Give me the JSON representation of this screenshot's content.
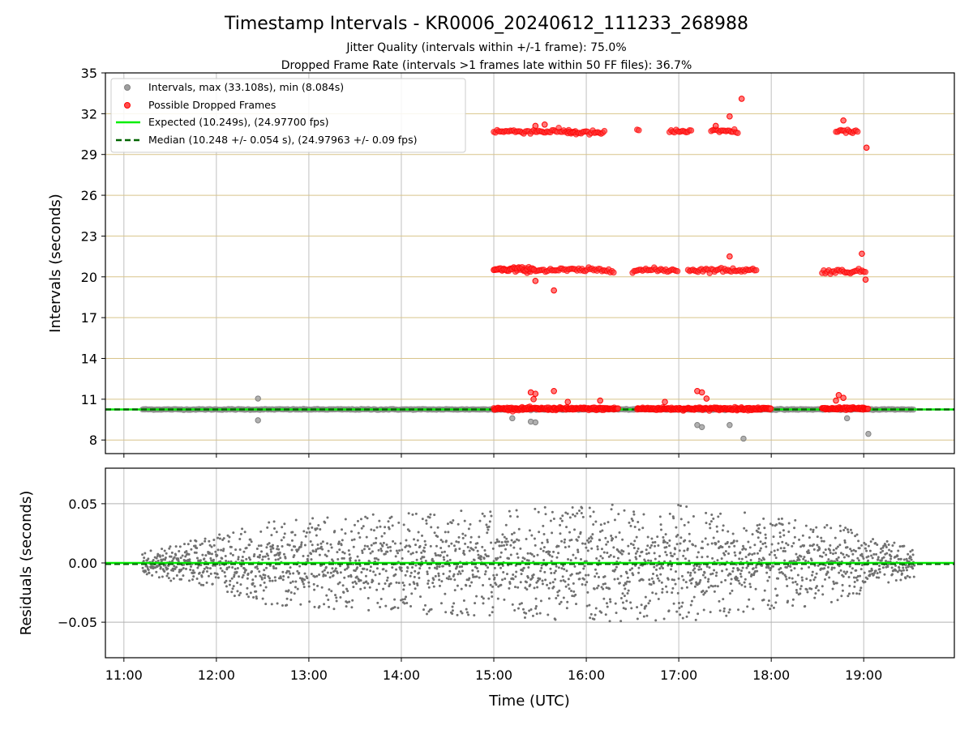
{
  "chart_data": {
    "title": "Timestamp Intervals - KR0006_20240612_111233_268988",
    "subtitle_lines": [
      "Jitter Quality (intervals within +/-1 frame): 75.0%",
      "Dropped Frame Rate (intervals >1 frames late within 50 FF files): 36.7%"
    ],
    "xlabel": "Time (UTC)",
    "x_ticks": [
      "11:00",
      "12:00",
      "13:00",
      "14:00",
      "15:00",
      "16:00",
      "17:00",
      "18:00",
      "19:00"
    ],
    "xlim_hours": [
      10.8,
      19.98
    ],
    "top_panel": {
      "type": "scatter",
      "ylabel": "Intervals (seconds)",
      "ylim": [
        7,
        35
      ],
      "y_ticks": [
        8,
        11,
        14,
        17,
        20,
        23,
        26,
        29,
        32,
        35
      ],
      "legend_position": "top-left",
      "grid": true,
      "legend": [
        {
          "label": "Intervals, max (33.108s), min (8.084s)",
          "kind": "marker",
          "color": "#9e9e9e"
        },
        {
          "label": "Possible Dropped Frames",
          "kind": "marker",
          "color": "#ff4d4d"
        },
        {
          "label": "Expected (10.249s), (24.97700 fps)",
          "kind": "line",
          "color": "#00ee00"
        },
        {
          "label": "Median (10.248 +/- 0.054 s), (24.97963 +/- 0.09 fps)",
          "kind": "dashed",
          "color": "#006400"
        }
      ],
      "expected_value": 10.249,
      "median_value": 10.248,
      "series": [
        {
          "name": "Intervals",
          "color": "#808080",
          "data_range": {
            "x": [
              11.2,
              19.55
            ],
            "y_center": 10.25
          },
          "outliers": [
            [
              12.45,
              11.05
            ],
            [
              12.45,
              9.45
            ],
            [
              15.2,
              9.6
            ],
            [
              15.4,
              9.35
            ],
            [
              15.45,
              9.3
            ],
            [
              17.2,
              9.1
            ],
            [
              17.25,
              8.95
            ],
            [
              17.55,
              9.1
            ],
            [
              17.7,
              8.1
            ],
            [
              18.82,
              9.6
            ],
            [
              19.05,
              8.45
            ]
          ]
        },
        {
          "name": "Possible Dropped Frames",
          "color": "#ff0000",
          "clusters": [
            {
              "x": [
                15.0,
                15.9
              ],
              "y": 30.7
            },
            {
              "x": [
                15.8,
                16.2
              ],
              "y": 30.6
            },
            {
              "x": [
                16.55,
                16.58
              ],
              "y": 30.7
            },
            {
              "x": [
                16.9,
                17.15
              ],
              "y": 30.7
            },
            {
              "x": [
                17.35,
                17.65
              ],
              "y": 30.7
            },
            {
              "x": [
                18.7,
                18.95
              ],
              "y": 30.7
            },
            {
              "x": [
                15.0,
                16.3
              ],
              "y": 20.5
            },
            {
              "x": [
                16.5,
                17.0
              ],
              "y": 20.5
            },
            {
              "x": [
                17.1,
                17.85
              ],
              "y": 20.5
            },
            {
              "x": [
                18.55,
                19.02
              ],
              "y": 20.4
            },
            {
              "x": [
                15.0,
                15.45
              ],
              "y": 20.6
            },
            {
              "x": [
                15.0,
                16.35
              ],
              "y": 10.3
            },
            {
              "x": [
                16.55,
                18.0
              ],
              "y": 10.3
            },
            {
              "x": [
                18.55,
                19.05
              ],
              "y": 10.3
            }
          ],
          "highlights": [
            [
              15.45,
              31.1
            ],
            [
              15.55,
              31.2
            ],
            [
              17.4,
              31.1
            ],
            [
              17.55,
              31.8
            ],
            [
              17.68,
              33.1
            ],
            [
              18.78,
              31.5
            ],
            [
              19.03,
              29.5
            ],
            [
              15.65,
              19.0
            ],
            [
              15.45,
              19.7
            ],
            [
              17.55,
              21.5
            ],
            [
              18.98,
              21.7
            ],
            [
              19.02,
              19.8
            ],
            [
              15.4,
              11.5
            ],
            [
              15.45,
              11.4
            ],
            [
              15.43,
              11.0
            ],
            [
              15.65,
              11.6
            ],
            [
              16.15,
              10.9
            ],
            [
              17.2,
              11.6
            ],
            [
              17.25,
              11.5
            ],
            [
              17.3,
              11.05
            ],
            [
              18.73,
              11.3
            ],
            [
              18.78,
              11.1
            ],
            [
              15.8,
              10.8
            ],
            [
              16.85,
              10.8
            ],
            [
              18.7,
              10.9
            ]
          ]
        }
      ]
    },
    "bottom_panel": {
      "type": "scatter",
      "ylabel": "Residuals (seconds)",
      "ylim": [
        -0.08,
        0.08
      ],
      "y_ticks": [
        -0.05,
        0.0,
        0.05
      ],
      "y_tick_labels": [
        "−0.05",
        "0.00",
        "0.05"
      ],
      "grid": true,
      "expected_value": 0.0,
      "median_value": -0.001,
      "series": [
        {
          "name": "Residuals",
          "color": "#808080",
          "x_range": [
            11.2,
            19.55
          ],
          "spread_by_hour": [
            [
              11.2,
              0.01
            ],
            [
              11.8,
              0.02
            ],
            [
              12.5,
              0.035
            ],
            [
              13.5,
              0.04
            ],
            [
              14.5,
              0.045
            ],
            [
              15.0,
              0.045
            ],
            [
              16.0,
              0.05
            ],
            [
              17.0,
              0.05
            ],
            [
              18.0,
              0.04
            ],
            [
              18.6,
              0.035
            ],
            [
              19.2,
              0.02
            ],
            [
              19.55,
              0.012
            ]
          ]
        }
      ]
    }
  }
}
